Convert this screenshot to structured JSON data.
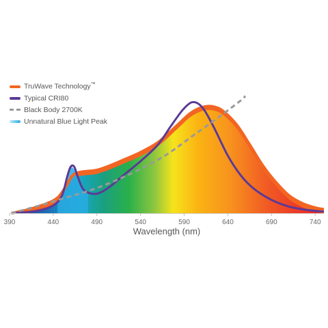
{
  "chart_data": {
    "type": "area",
    "title": "",
    "xlabel": "Wavelength (nm)",
    "ylabel": "",
    "xlim": [
      390,
      750
    ],
    "ylim": [
      0,
      1
    ],
    "x_ticks": [
      390,
      440,
      490,
      540,
      590,
      640,
      690,
      740
    ],
    "grid": false,
    "legend_position": "top-left",
    "series": [
      {
        "name": "TruWave Technology",
        "name_superscript": "™",
        "color": "#f26522",
        "style": "filled spectrum area",
        "points": [
          [
            392,
            0.0
          ],
          [
            410,
            0.03
          ],
          [
            430,
            0.08
          ],
          [
            445,
            0.14
          ],
          [
            455,
            0.25
          ],
          [
            462,
            0.34
          ],
          [
            470,
            0.37
          ],
          [
            480,
            0.38
          ],
          [
            490,
            0.39
          ],
          [
            505,
            0.43
          ],
          [
            520,
            0.48
          ],
          [
            540,
            0.55
          ],
          [
            560,
            0.64
          ],
          [
            580,
            0.78
          ],
          [
            595,
            0.89
          ],
          [
            605,
            0.94
          ],
          [
            615,
            0.965
          ],
          [
            625,
            0.96
          ],
          [
            635,
            0.92
          ],
          [
            650,
            0.8
          ],
          [
            665,
            0.62
          ],
          [
            680,
            0.43
          ],
          [
            695,
            0.28
          ],
          [
            710,
            0.16
          ],
          [
            725,
            0.09
          ],
          [
            740,
            0.05
          ],
          [
            750,
            0.035
          ]
        ]
      },
      {
        "name": "Typical CRI80",
        "color": "#5b3a96",
        "style": "solid line",
        "points": [
          [
            392,
            0.0
          ],
          [
            420,
            0.02
          ],
          [
            440,
            0.07
          ],
          [
            450,
            0.16
          ],
          [
            456,
            0.33
          ],
          [
            460,
            0.42
          ],
          [
            464,
            0.42
          ],
          [
            468,
            0.33
          ],
          [
            474,
            0.22
          ],
          [
            482,
            0.18
          ],
          [
            492,
            0.18
          ],
          [
            505,
            0.24
          ],
          [
            520,
            0.34
          ],
          [
            540,
            0.47
          ],
          [
            560,
            0.62
          ],
          [
            575,
            0.79
          ],
          [
            588,
            0.93
          ],
          [
            598,
            1.0
          ],
          [
            606,
            0.99
          ],
          [
            614,
            0.92
          ],
          [
            625,
            0.76
          ],
          [
            640,
            0.52
          ],
          [
            655,
            0.34
          ],
          [
            670,
            0.22
          ],
          [
            690,
            0.12
          ],
          [
            710,
            0.06
          ],
          [
            730,
            0.03
          ],
          [
            750,
            0.015
          ]
        ]
      },
      {
        "name": "Black Body 2700K",
        "color": "#9a9a9a",
        "style": "dashed line",
        "points": [
          [
            392,
            0.0
          ],
          [
            420,
            0.06
          ],
          [
            450,
            0.13
          ],
          [
            480,
            0.2
          ],
          [
            510,
            0.29
          ],
          [
            540,
            0.4
          ],
          [
            570,
            0.53
          ],
          [
            600,
            0.7
          ],
          [
            630,
            0.87
          ],
          [
            655,
            1.02
          ],
          [
            660,
            1.06
          ]
        ]
      },
      {
        "name": "Unnatural Blue Light Peak",
        "color": "#29abe2",
        "style": "highlighted region",
        "points": [
          [
            448,
            0.14
          ],
          [
            455,
            0.28
          ],
          [
            460,
            0.41
          ],
          [
            465,
            0.38
          ],
          [
            470,
            0.26
          ],
          [
            476,
            0.2
          ],
          [
            480,
            0.2
          ]
        ]
      }
    ]
  }
}
